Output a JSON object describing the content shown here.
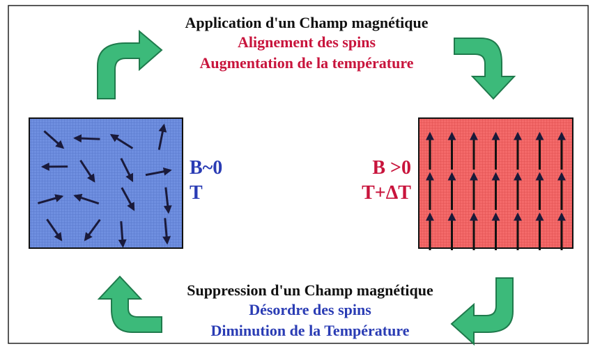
{
  "top": {
    "title": "Application d'un Champ magnétique",
    "line1": "Alignement des spins",
    "line2": "Augmentation de la température"
  },
  "left_state": {
    "field": "B~0",
    "temperature": "T"
  },
  "right_state": {
    "field": "B >0",
    "temperature": "T+ΔT"
  },
  "bottom": {
    "title": "Suppression d'un Champ magnétique",
    "line1": "Désordre des spins",
    "line2": "Diminution de la Température"
  }
}
